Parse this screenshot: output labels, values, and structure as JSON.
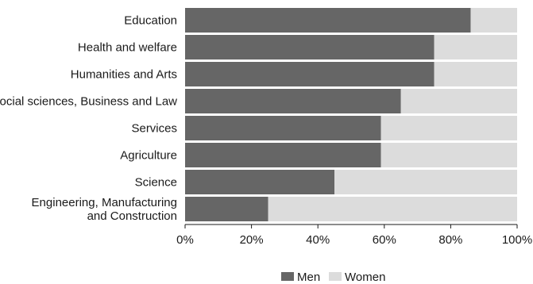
{
  "chart_data": {
    "type": "bar",
    "orientation": "horizontal",
    "stacked": true,
    "categories": [
      [
        "Education"
      ],
      [
        "Health and welfare"
      ],
      [
        "Humanities and Arts"
      ],
      [
        "Social sciences, Business and Law"
      ],
      [
        "Services"
      ],
      [
        "Agriculture"
      ],
      [
        "Science"
      ],
      [
        "Engineering, Manufacturing",
        "and Construction"
      ]
    ],
    "series": [
      {
        "name": "Men",
        "values": [
          86,
          75,
          75,
          65,
          59,
          59,
          45,
          25
        ],
        "color": "#666666"
      },
      {
        "name": "Women",
        "values": [
          14,
          25,
          25,
          35,
          41,
          41,
          55,
          75
        ],
        "color": "#dcdcdc"
      }
    ],
    "xlim": [
      0,
      100
    ],
    "x_ticks": [
      "0%",
      "20%",
      "40%",
      "60%",
      "80%",
      "100%"
    ],
    "grid": false,
    "legend_position": "bottom-center"
  }
}
